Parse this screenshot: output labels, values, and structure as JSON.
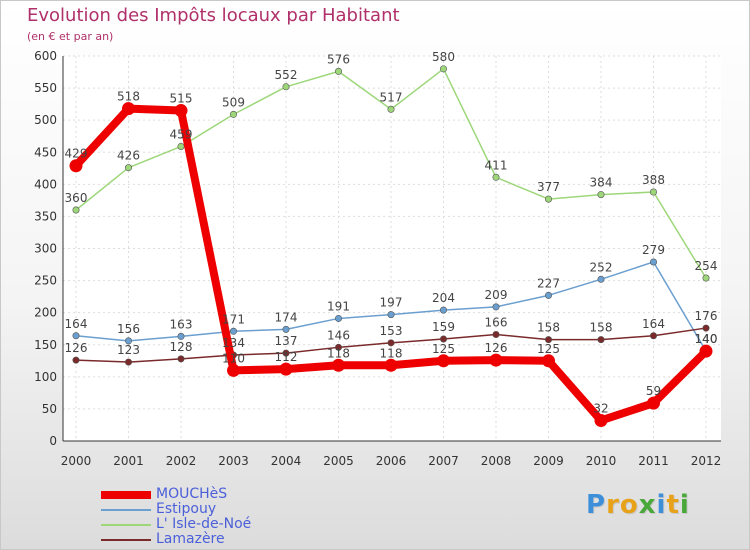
{
  "title": "Evolution des Impôts locaux par Habitant",
  "subtitle": "(en € et par an)",
  "logo": {
    "text": "Proxiti",
    "letters": [
      {
        "char": "P",
        "color": "#3d8fd9"
      },
      {
        "char": "r",
        "color": "#e8a21a"
      },
      {
        "char": "o",
        "color": "#e8a21a"
      },
      {
        "char": "x",
        "color": "#4aa83a"
      },
      {
        "char": "i",
        "color": "#3d8fd9"
      },
      {
        "char": "t",
        "color": "#e8a21a"
      },
      {
        "char": "i",
        "color": "#4aa83a"
      }
    ]
  },
  "chart_data": {
    "type": "line",
    "title": "Evolution des Impôts locaux par Habitant",
    "subtitle": "(en € et par an)",
    "xlabel": "",
    "ylabel": "",
    "categories": [
      "2000",
      "2001",
      "2002",
      "2003",
      "2004",
      "2005",
      "2006",
      "2007",
      "2008",
      "2009",
      "2010",
      "2011",
      "2012"
    ],
    "ylim": [
      0,
      600
    ],
    "yticks": [
      0,
      50,
      100,
      150,
      200,
      250,
      300,
      350,
      400,
      450,
      500,
      550,
      600
    ],
    "grid": true,
    "legend_position": "bottom-left",
    "series": [
      {
        "name": "MOUCHèS",
        "color": "#ee0000",
        "emphasis": true,
        "values": [
          429,
          518,
          515,
          110,
          112,
          118,
          118,
          125,
          126,
          125,
          32,
          59,
          140
        ],
        "labels": [
          "429",
          "518",
          "515",
          "110",
          "112",
          "118",
          "118",
          "125",
          "126",
          "125",
          "32",
          "59",
          "140"
        ]
      },
      {
        "name": "Estipouy",
        "color": "#6a9fcf",
        "emphasis": false,
        "values": [
          164,
          156,
          163,
          171,
          174,
          191,
          197,
          204,
          209,
          227,
          252,
          279,
          140
        ],
        "labels": [
          "164",
          "156",
          "163",
          "171",
          "174",
          "191",
          "197",
          "204",
          "209",
          "227",
          "252",
          "279",
          "140"
        ]
      },
      {
        "name": "L' Isle-de-Noé",
        "color": "#9dd77a",
        "emphasis": false,
        "values": [
          360,
          426,
          459,
          509,
          552,
          576,
          517,
          580,
          411,
          377,
          384,
          388,
          254
        ],
        "labels": [
          "360",
          "426",
          "459",
          "509",
          "552",
          "576",
          "517",
          "580",
          "411",
          "377",
          "384",
          "388",
          "254"
        ]
      },
      {
        "name": "Lamazère",
        "color": "#7a2a2a",
        "emphasis": false,
        "values": [
          126,
          123,
          128,
          134,
          137,
          146,
          153,
          159,
          166,
          158,
          158,
          164,
          176
        ],
        "labels": [
          "126",
          "123",
          "128",
          "134",
          "137",
          "146",
          "153",
          "159",
          "166",
          "158",
          "158",
          "164",
          "176"
        ]
      }
    ]
  }
}
